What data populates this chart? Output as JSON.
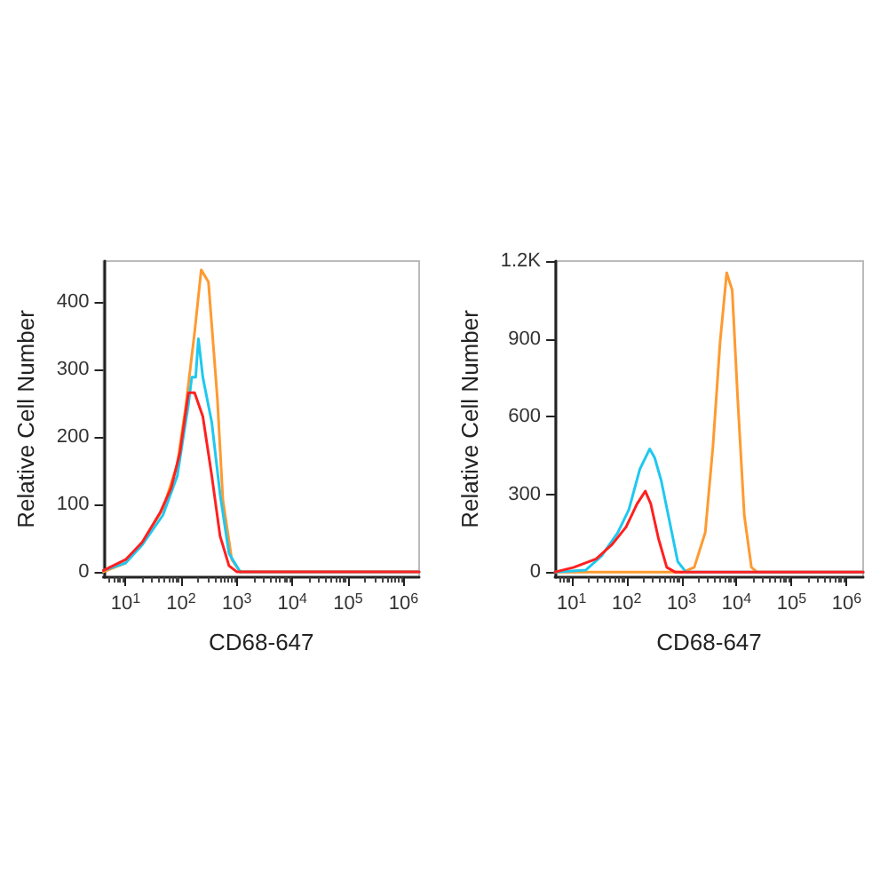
{
  "chart_data": [
    {
      "type": "line",
      "xlabel": "CD68-647",
      "ylabel": "Relative Cell Number",
      "log": "x",
      "grid": false,
      "marker": "none",
      "line_style": "solid",
      "xlim": [
        4,
        1900000
      ],
      "xticks": [
        {
          "value": 10,
          "label": "10$^{1}$"
        },
        {
          "value": 100,
          "label": "10$^{2}$"
        },
        {
          "value": 1000,
          "label": "10$^{3}$"
        },
        {
          "value": 10000,
          "label": "10$^{4}$"
        },
        {
          "value": 100000,
          "label": "10$^{5}$"
        },
        {
          "value": 1000000,
          "label": "10$^{6}$"
        }
      ],
      "ylim": [
        -8,
        460
      ],
      "yticks": [
        0,
        100,
        200,
        300,
        400
      ],
      "series": [
        {
          "color": "#ff9a30",
          "x": [
            4,
            10,
            20,
            47,
            85,
            120,
            174,
            229,
            309,
            447,
            562,
            813,
            1150,
            1900000
          ],
          "values": [
            0,
            13,
            44,
            93,
            159,
            243,
            354,
            447,
            429,
            257,
            106,
            18,
            0,
            0
          ]
        },
        {
          "color": "#1ec8f0",
          "x": [
            4,
            10,
            20,
            47,
            85,
            135,
            155,
            182,
            204,
            245,
            355,
            500,
            724,
            1150,
            1900000
          ],
          "values": [
            2,
            13,
            40,
            84,
            142,
            248,
            288,
            288,
            345,
            288,
            221,
            115,
            27,
            0,
            0
          ]
        },
        {
          "color": "#ff2020",
          "x": [
            4,
            10,
            20,
            42,
            66,
            95,
            135,
            174,
            245,
            355,
            500,
            724,
            1000,
            1900000
          ],
          "values": [
            2,
            18,
            44,
            88,
            124,
            177,
            265,
            265,
            230,
            142,
            53,
            9,
            0,
            0
          ]
        }
      ]
    },
    {
      "type": "line",
      "xlabel": "CD68-647",
      "ylabel": "Relative Cell Number",
      "log": "x",
      "grid": false,
      "marker": "none",
      "line_style": "solid",
      "xlim": [
        5,
        2000000
      ],
      "xticks": [
        {
          "value": 10,
          "label": "10$^{1}$"
        },
        {
          "value": 100,
          "label": "10$^{2}$"
        },
        {
          "value": 1000,
          "label": "10$^{3}$"
        },
        {
          "value": 10000,
          "label": "10$^{4}$"
        },
        {
          "value": 100000,
          "label": "10$^{5}$"
        },
        {
          "value": 1000000,
          "label": "10$^{6}$"
        }
      ],
      "ylim": [
        -20,
        1200
      ],
      "yticks": [
        0,
        300,
        600,
        900,
        {
          "value": 1200,
          "label": "1.2K"
        }
      ],
      "series": [
        {
          "color": "#ff9a30",
          "x": [
            5,
            1070,
            1700,
            2690,
            3720,
            5010,
            6610,
            8320,
            10500,
            13800,
            18600,
            23400,
            2000000
          ],
          "values": [
            0,
            0,
            18,
            152,
            486,
            887,
            1155,
            1088,
            665,
            219,
            18,
            0,
            0
          ]
        },
        {
          "color": "#1ec8f0",
          "x": [
            5,
            18,
            35,
            69,
            110,
            174,
            263,
            324,
            427,
            603,
            851,
            1200,
            2000000
          ],
          "values": [
            0,
            7,
            62,
            152,
            241,
            397,
            475,
            441,
            352,
            196,
            40,
            0,
            0
          ]
        },
        {
          "color": "#ff2020",
          "x": [
            5,
            11,
            28,
            55,
            98,
            155,
            219,
            275,
            380,
            537,
            759,
            2000000
          ],
          "values": [
            0,
            18,
            51,
            107,
            174,
            263,
            312,
            263,
            129,
            18,
            0,
            0
          ]
        }
      ]
    }
  ]
}
